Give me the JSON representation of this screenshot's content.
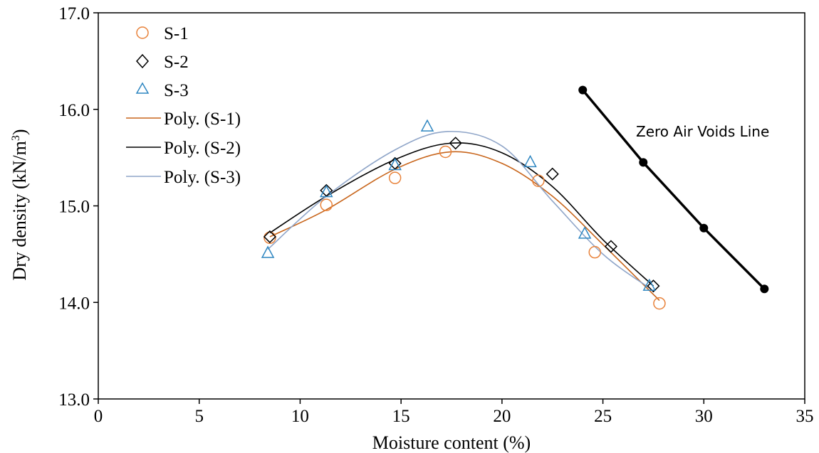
{
  "chart_data": {
    "type": "scatter",
    "xlabel": "Moisture content (%)",
    "ylabel_main": "Dry density (kN/m",
    "ylabel_sup": "3",
    "ylabel_close": ")",
    "xlim": [
      0,
      35
    ],
    "ylim": [
      13.0,
      17.0
    ],
    "x_ticks": [
      0,
      5,
      10,
      15,
      20,
      25,
      30,
      35
    ],
    "x_tick_labels": [
      "0",
      "5",
      "10",
      "15",
      "20",
      "25",
      "30",
      "35"
    ],
    "y_ticks": [
      13.0,
      14.0,
      15.0,
      16.0,
      17.0
    ],
    "y_tick_labels": [
      "13.0",
      "14.0",
      "15.0",
      "16.0",
      "17.0"
    ],
    "grid": false,
    "legend_position": "top-left",
    "series": [
      {
        "name": "S-1",
        "marker": "circle",
        "color": "#E8823A",
        "x": [
          8.5,
          11.3,
          14.7,
          17.2,
          21.8,
          24.6,
          27.8
        ],
        "y": [
          14.67,
          15.01,
          15.29,
          15.56,
          15.26,
          14.52,
          13.99
        ]
      },
      {
        "name": "S-2",
        "marker": "diamond",
        "color": "#000000",
        "x": [
          8.5,
          11.3,
          14.7,
          17.7,
          22.5,
          25.4,
          27.5
        ],
        "y": [
          14.68,
          15.16,
          15.44,
          15.65,
          15.33,
          14.58,
          14.17
        ]
      },
      {
        "name": "S-3",
        "marker": "triangle",
        "color": "#2E86C1",
        "x": [
          8.4,
          11.3,
          14.7,
          16.3,
          21.4,
          24.1,
          27.3
        ],
        "y": [
          14.51,
          15.14,
          15.42,
          15.82,
          15.45,
          14.71,
          14.17
        ]
      }
    ],
    "trendlines": [
      {
        "name": "Poly. (S-1)",
        "color": "#C8651B",
        "x": [
          8.5,
          11.3,
          14.7,
          17.5,
          20.0,
          22.5,
          25.0,
          27.8
        ],
        "y": [
          14.68,
          14.96,
          15.38,
          15.56,
          15.44,
          15.1,
          14.6,
          14.02
        ]
      },
      {
        "name": "Poly. (S-2)",
        "color": "#000000",
        "x": [
          8.5,
          11.3,
          14.7,
          17.5,
          20.0,
          22.5,
          25.0,
          27.5
        ],
        "y": [
          14.72,
          15.1,
          15.48,
          15.65,
          15.55,
          15.2,
          14.65,
          14.17
        ]
      },
      {
        "name": "Poly. (S-3)",
        "color": "#8FA5C8",
        "x": [
          8.4,
          11.3,
          14.7,
          17.3,
          20.0,
          22.5,
          25.0,
          27.3
        ],
        "y": [
          14.55,
          15.1,
          15.58,
          15.77,
          15.62,
          15.05,
          14.5,
          14.15
        ]
      }
    ],
    "zero_air_voids": {
      "color": "#000000",
      "x": [
        24.0,
        27.0,
        30.0,
        33.0
      ],
      "y": [
        16.2,
        15.45,
        14.77,
        14.14
      ]
    },
    "annotation": "Zero Air Voids Line"
  }
}
